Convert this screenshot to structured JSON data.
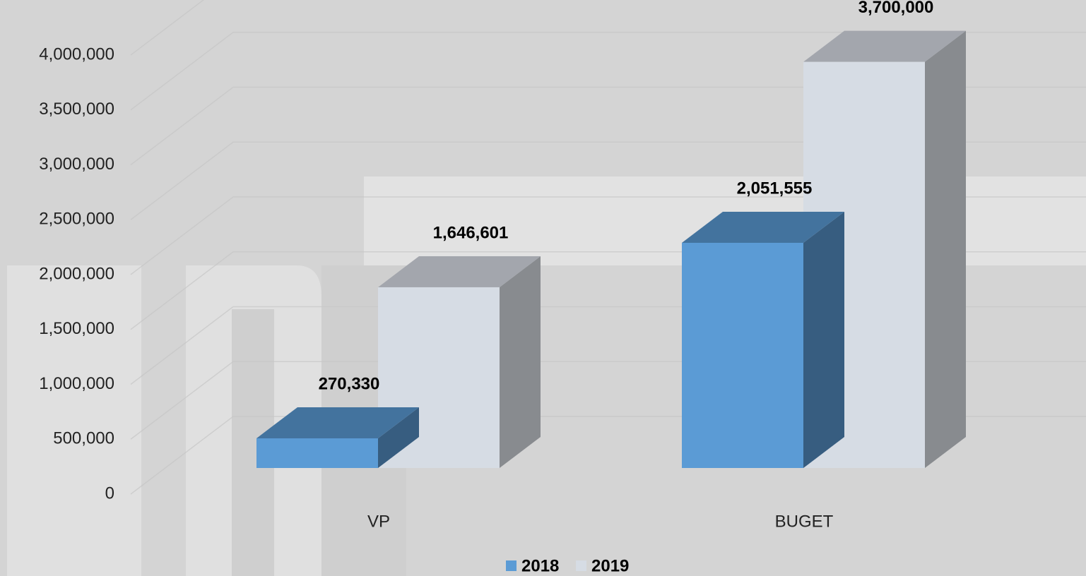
{
  "chart_data": {
    "type": "bar3d",
    "categories": [
      "VP",
      "BUGET"
    ],
    "series": [
      {
        "name": "2018",
        "color": "#5b9bd5",
        "values": [
          270330,
          2051555
        ],
        "value_labels": [
          "270,330",
          "2,051,555"
        ]
      },
      {
        "name": "2019",
        "color": "#d6dce4",
        "values": [
          1646601,
          3700000
        ],
        "value_labels": [
          "1,646,601",
          "3,700,000"
        ]
      }
    ],
    "ylim": [
      0,
      4000000
    ],
    "yticks": [
      {
        "value": 0,
        "label": "0"
      },
      {
        "value": 500000,
        "label": "500,000"
      },
      {
        "value": 1000000,
        "label": "1,000,000"
      },
      {
        "value": 1500000,
        "label": "1,500,000"
      },
      {
        "value": 2000000,
        "label": "2,000,000"
      },
      {
        "value": 2500000,
        "label": "2,500,000"
      },
      {
        "value": 3000000,
        "label": "3,000,000"
      },
      {
        "value": 3500000,
        "label": "3,500,000"
      },
      {
        "value": 4000000,
        "label": "4,000,000"
      }
    ],
    "grid": true,
    "legend": "bottom"
  }
}
